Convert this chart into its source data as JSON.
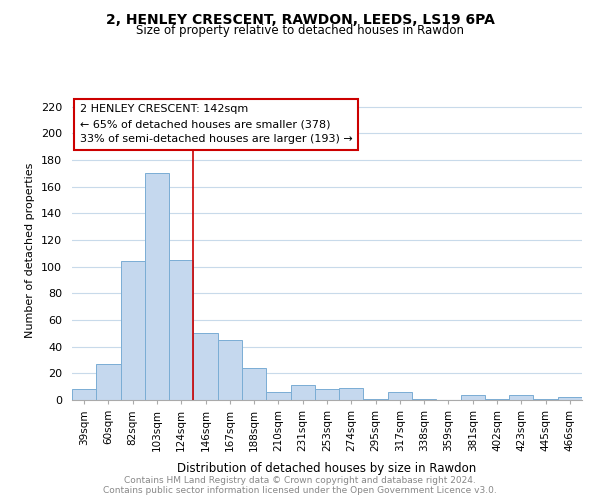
{
  "title": "2, HENLEY CRESCENT, RAWDON, LEEDS, LS19 6PA",
  "subtitle": "Size of property relative to detached houses in Rawdon",
  "xlabel": "Distribution of detached houses by size in Rawdon",
  "ylabel": "Number of detached properties",
  "bar_color": "#c5d8ee",
  "bar_edge_color": "#7aadd4",
  "categories": [
    "39sqm",
    "60sqm",
    "82sqm",
    "103sqm",
    "124sqm",
    "146sqm",
    "167sqm",
    "188sqm",
    "210sqm",
    "231sqm",
    "253sqm",
    "274sqm",
    "295sqm",
    "317sqm",
    "338sqm",
    "359sqm",
    "381sqm",
    "402sqm",
    "423sqm",
    "445sqm",
    "466sqm"
  ],
  "values": [
    8,
    27,
    104,
    170,
    105,
    50,
    45,
    24,
    6,
    11,
    8,
    9,
    1,
    6,
    1,
    0,
    4,
    1,
    4,
    1,
    2
  ],
  "ylim": [
    0,
    225
  ],
  "yticks": [
    0,
    20,
    40,
    60,
    80,
    100,
    120,
    140,
    160,
    180,
    200,
    220
  ],
  "property_line_label": "2 HENLEY CRESCENT: 142sqm",
  "annotation_line1": "← 65% of detached houses are smaller (378)",
  "annotation_line2": "33% of semi-detached houses are larger (193) →",
  "vline_color": "#cc0000",
  "footer_line1": "Contains HM Land Registry data © Crown copyright and database right 2024.",
  "footer_line2": "Contains public sector information licensed under the Open Government Licence v3.0.",
  "background_color": "#ffffff",
  "grid_color": "#c8daea"
}
